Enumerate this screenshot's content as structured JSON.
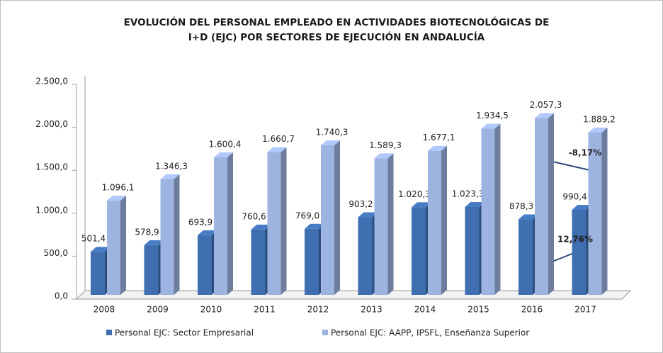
{
  "chart_data": {
    "type": "bar3d",
    "title": [
      "EVOLUCIÓN DEL PERSONAL EMPLEADO EN ACTIVIDADES BIOTECNOLÓGICAS DE",
      "I+D (EJC) POR SECTORES DE EJECUCIÓN EN ANDALUCÍA"
    ],
    "categories": [
      "2008",
      "2009",
      "2010",
      "2011",
      "2012",
      "2013",
      "2014",
      "2015",
      "2016",
      "2017"
    ],
    "series": [
      {
        "name": "Personal EJC: Sector Empresarial",
        "color": "#3f6fb0",
        "values": [
          501.4,
          578.9,
          693.9,
          760.6,
          769.0,
          903.2,
          1020.3,
          1023.3,
          878.3,
          990.4
        ],
        "value_labels": [
          "501,4",
          "578,9",
          "693,9",
          "760,6",
          "769,0",
          "903,2",
          "1.020,3",
          "1.023,3",
          "878,3",
          "990,4"
        ]
      },
      {
        "name": "Personal EJC: AAPP, IPSFL, Enseñanza Superior",
        "color": "#9db3e0",
        "values": [
          1096.1,
          1346.3,
          1600.4,
          1660.7,
          1740.3,
          1589.3,
          1677.1,
          1934.5,
          2057.3,
          1889.2
        ],
        "value_labels": [
          "1.096,1",
          "1.346,3",
          "1.600,4",
          "1.660,7",
          "1.740,3",
          "1.589,3",
          "1.677,1",
          "1.934,5",
          "2.057,3",
          "1.889,2"
        ]
      }
    ],
    "ylim": [
      0,
      2500
    ],
    "yticks": [
      {
        "value": 0,
        "label": "0,0"
      },
      {
        "value": 500,
        "label": "500,0"
      },
      {
        "value": 1000,
        "label": "1.000,0"
      },
      {
        "value": 1500,
        "label": "1.500,0"
      },
      {
        "value": 2000,
        "label": "2.000,0"
      },
      {
        "value": 2500,
        "label": "2.500,0"
      }
    ],
    "annotations": [
      "-8,17%",
      "12,76%"
    ],
    "legend": "bottom"
  }
}
